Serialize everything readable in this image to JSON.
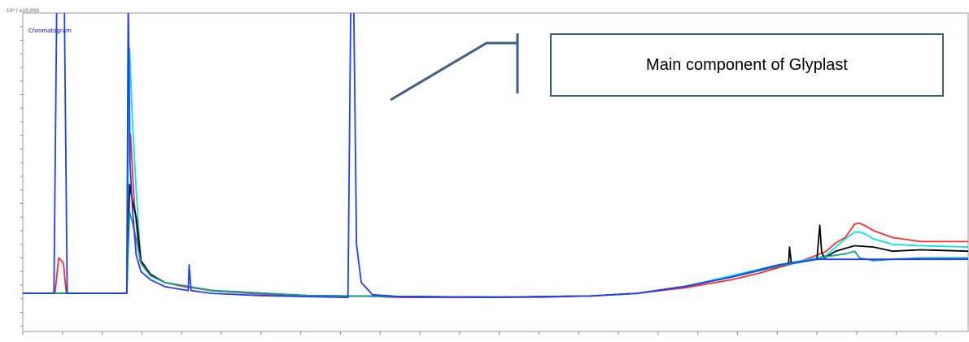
{
  "chart_data": {
    "type": "line",
    "title": "",
    "xlabel": "",
    "ylabel": "",
    "header_text": "·10⁵ | x10,000",
    "legend_label": "Chromatogram",
    "annotation": "Main component of Glyplast",
    "xlim": [
      0,
      100
    ],
    "ylim": [
      -1.2,
      10.5
    ],
    "series": [
      {
        "color": "#ff2a2a",
        "x": [
          0,
          3.4,
          3.8,
          4.1,
          4.3,
          4.6,
          11.0,
          11.2,
          11.4,
          11.8,
          12.4,
          13.5,
          15,
          17,
          20,
          25,
          30,
          35,
          37.5,
          38,
          40,
          45,
          50,
          55,
          60,
          65,
          70,
          75,
          78,
          80,
          82,
          84,
          85,
          86,
          87,
          88,
          88.5,
          89,
          90,
          92,
          95,
          100
        ],
        "y": [
          0.2,
          0.2,
          1.5,
          1.4,
          1.3,
          0.2,
          0.2,
          6.2,
          6.0,
          3.5,
          1.4,
          0.9,
          0.6,
          0.45,
          0.3,
          0.18,
          0.12,
          0.1,
          0.1,
          0.07,
          0.05,
          0.05,
          0.05,
          0.06,
          0.1,
          0.2,
          0.4,
          0.7,
          0.95,
          1.15,
          1.35,
          1.6,
          1.75,
          2.05,
          2.25,
          2.75,
          2.78,
          2.7,
          2.5,
          2.25,
          2.1,
          2.1
        ]
      },
      {
        "color": "#00e5e5",
        "x": [
          0,
          3.4,
          4.6,
          11.0,
          11.3,
          11.6,
          12.0,
          12.5,
          13.5,
          15,
          20,
          30,
          40,
          50,
          60,
          65,
          70,
          75,
          80,
          84,
          85,
          86,
          87,
          88,
          88.5,
          89,
          90,
          92,
          95,
          100
        ],
        "y": [
          0.2,
          0.2,
          0.2,
          0.2,
          9.2,
          6.5,
          4.0,
          1.3,
          0.85,
          0.6,
          0.3,
          0.12,
          0.08,
          0.06,
          0.1,
          0.2,
          0.45,
          0.85,
          1.25,
          1.5,
          1.6,
          1.9,
          2.2,
          2.45,
          2.45,
          2.4,
          2.2,
          2.0,
          1.95,
          1.9
        ]
      },
      {
        "color": "#000000",
        "x": [
          0,
          11.0,
          11.3,
          11.6,
          12.0,
          12.5,
          13.5,
          15,
          20,
          30,
          40,
          50,
          60,
          65,
          70,
          75,
          80,
          81,
          81.1,
          81.3,
          84,
          84.3,
          84.5,
          84.8,
          86,
          87,
          88,
          90,
          92,
          95,
          100
        ],
        "y": [
          0.2,
          0.2,
          4.2,
          3.6,
          3.0,
          1.4,
          0.9,
          0.6,
          0.3,
          0.12,
          0.08,
          0.06,
          0.1,
          0.2,
          0.45,
          0.8,
          1.2,
          1.25,
          1.9,
          1.3,
          1.45,
          2.7,
          1.7,
          1.5,
          1.75,
          1.85,
          1.95,
          1.9,
          1.75,
          1.8,
          1.75
        ]
      },
      {
        "color": "#16a090",
        "x": [
          0,
          11.0,
          11.3,
          11.6,
          12.0,
          12.5,
          13.5,
          15,
          20,
          30,
          40,
          50,
          60,
          65,
          70,
          75,
          80,
          84,
          85,
          86,
          87,
          88,
          88.5,
          90,
          92,
          95,
          100
        ],
        "y": [
          0.2,
          0.2,
          3.2,
          2.8,
          2.2,
          1.3,
          0.85,
          0.6,
          0.3,
          0.12,
          0.08,
          0.06,
          0.1,
          0.2,
          0.45,
          0.8,
          1.2,
          1.45,
          1.55,
          1.6,
          1.65,
          1.75,
          1.5,
          1.4,
          1.45,
          1.5,
          1.5
        ]
      },
      {
        "color": "#1f3dff",
        "x": [
          0,
          3.3,
          3.6,
          3.9,
          4.1,
          4.4,
          4.7,
          11.0,
          11.15,
          11.35,
          11.6,
          12.0,
          12.5,
          13.5,
          15,
          17.5,
          17.6,
          17.8,
          20,
          25,
          30,
          34.4,
          34.7,
          35.0,
          35.3,
          35.8,
          37,
          40,
          50,
          60,
          65,
          70,
          75,
          80,
          84,
          85,
          86,
          87,
          88,
          90,
          95,
          100
        ],
        "y": [
          0.2,
          0.2,
          11,
          10.5,
          11,
          10.8,
          0.2,
          0.2,
          11,
          5.0,
          3.3,
          1.6,
          1.0,
          0.7,
          0.45,
          0.3,
          1.25,
          0.3,
          0.2,
          0.12,
          0.08,
          0.05,
          11,
          11,
          2.0,
          0.6,
          0.15,
          0.08,
          0.06,
          0.1,
          0.2,
          0.45,
          0.8,
          1.25,
          1.45,
          1.45,
          1.45,
          1.45,
          1.45,
          1.45,
          1.45,
          1.45
        ]
      }
    ]
  }
}
